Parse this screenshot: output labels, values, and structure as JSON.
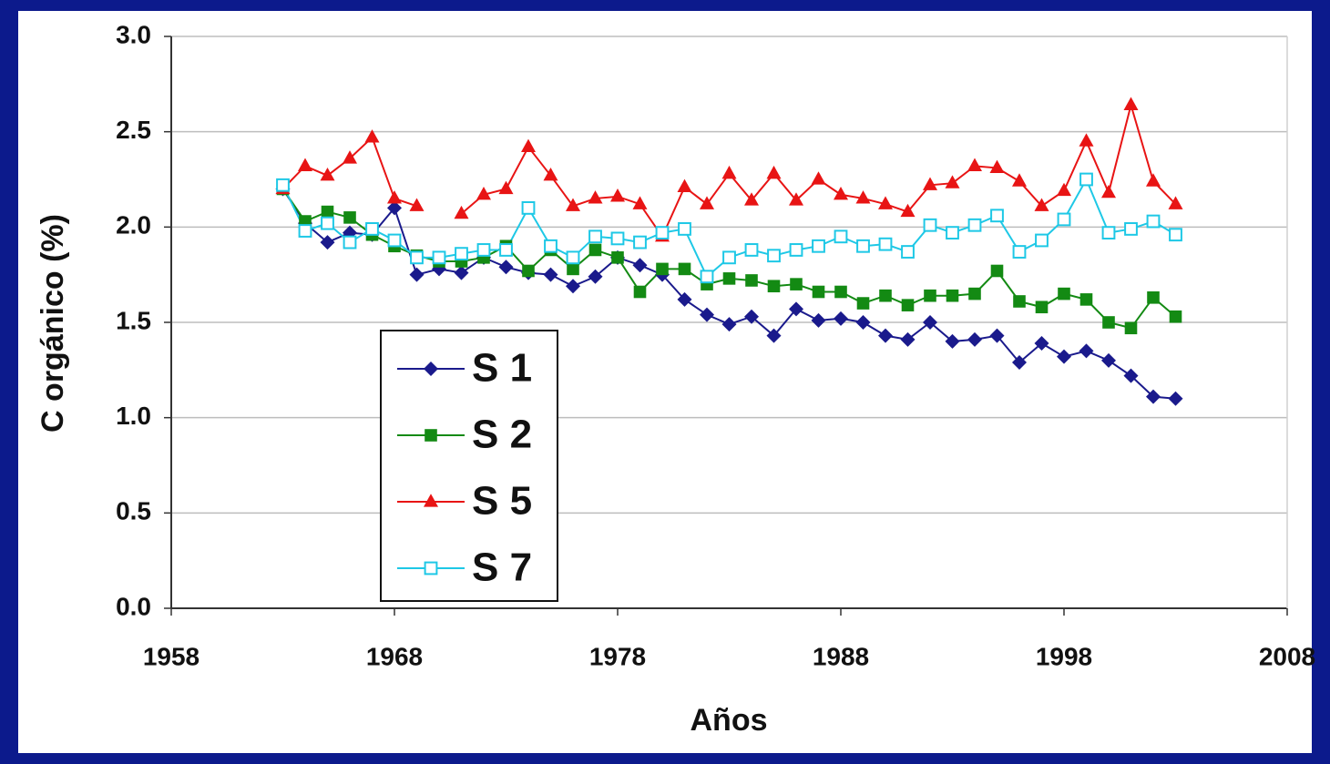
{
  "chart_data": {
    "type": "line",
    "xlabel": "Años",
    "ylabel": "C orgánico (%)",
    "x": [
      1963,
      1964,
      1965,
      1966,
      1967,
      1968,
      1969,
      1970,
      1971,
      1972,
      1973,
      1974,
      1975,
      1976,
      1977,
      1978,
      1979,
      1980,
      1981,
      1982,
      1983,
      1984,
      1985,
      1986,
      1987,
      1988,
      1989,
      1990,
      1991,
      1992,
      1993,
      1994,
      1995,
      1996,
      1997,
      1998,
      1999,
      2000,
      2001,
      2002,
      2003
    ],
    "series": [
      {
        "name": "S 1",
        "color": "#1a1a8c",
        "marker": "diamond",
        "values": [
          2.2,
          2.02,
          1.92,
          1.97,
          1.96,
          2.1,
          1.75,
          1.78,
          1.76,
          1.84,
          1.79,
          1.76,
          1.75,
          1.69,
          1.74,
          1.84,
          1.8,
          1.75,
          1.62,
          1.54,
          1.49,
          1.53,
          1.43,
          1.57,
          1.51,
          1.52,
          1.5,
          1.43,
          1.41,
          1.5,
          1.4,
          1.41,
          1.43,
          1.29,
          1.39,
          1.32,
          1.35,
          1.3,
          1.22,
          1.11,
          1.1
        ]
      },
      {
        "name": "S 2",
        "color": "#138a13",
        "marker": "square",
        "values": [
          2.2,
          2.03,
          2.08,
          2.05,
          1.96,
          1.9,
          1.85,
          1.82,
          1.82,
          1.84,
          1.9,
          1.77,
          1.88,
          1.78,
          1.88,
          1.84,
          1.66,
          1.78,
          1.78,
          1.7,
          1.73,
          1.72,
          1.69,
          1.7,
          1.66,
          1.66,
          1.6,
          1.64,
          1.59,
          1.64,
          1.64,
          1.65,
          1.77,
          1.61,
          1.58,
          1.65,
          1.62,
          1.5,
          1.47,
          1.63,
          1.53
        ]
      },
      {
        "name": "S 5",
        "color": "#e81414",
        "marker": "triangle",
        "values": [
          2.2,
          2.32,
          2.27,
          2.36,
          2.47,
          2.15,
          2.11,
          null,
          2.07,
          2.17,
          2.2,
          2.42,
          2.27,
          2.11,
          2.15,
          2.16,
          2.12,
          1.95,
          2.21,
          2.12,
          2.28,
          2.14,
          2.28,
          2.14,
          2.25,
          2.17,
          2.15,
          2.12,
          2.08,
          2.22,
          2.23,
          2.32,
          2.31,
          2.24,
          2.11,
          2.19,
          2.45,
          2.18,
          2.64,
          2.24,
          2.12
        ]
      },
      {
        "name": "S 7",
        "color": "#1ec8e6",
        "marker": "open-square",
        "values": [
          2.22,
          1.98,
          2.02,
          1.92,
          1.99,
          1.93,
          1.84,
          1.84,
          1.86,
          1.88,
          1.88,
          2.1,
          1.9,
          1.84,
          1.95,
          1.94,
          1.92,
          1.97,
          1.99,
          1.74,
          1.84,
          1.88,
          1.85,
          1.88,
          1.9,
          1.95,
          1.9,
          1.91,
          1.87,
          2.01,
          1.97,
          2.01,
          2.06,
          1.87,
          1.93,
          2.04,
          2.25,
          1.97,
          1.99,
          2.03,
          1.96
        ]
      }
    ],
    "xlim": [
      1958,
      2008
    ],
    "xticks": [
      1958,
      1968,
      1978,
      1988,
      1998,
      2008
    ],
    "ylim": [
      0,
      3
    ],
    "yticks": [
      {
        "value": 0,
        "label": "0.0"
      },
      0.5,
      {
        "value": 1,
        "label": "1.0"
      },
      1.5,
      {
        "value": 2,
        "label": "2.0"
      },
      2.5,
      {
        "value": 3,
        "label": "3.0"
      }
    ],
    "grid": true,
    "legend": "lower left"
  }
}
